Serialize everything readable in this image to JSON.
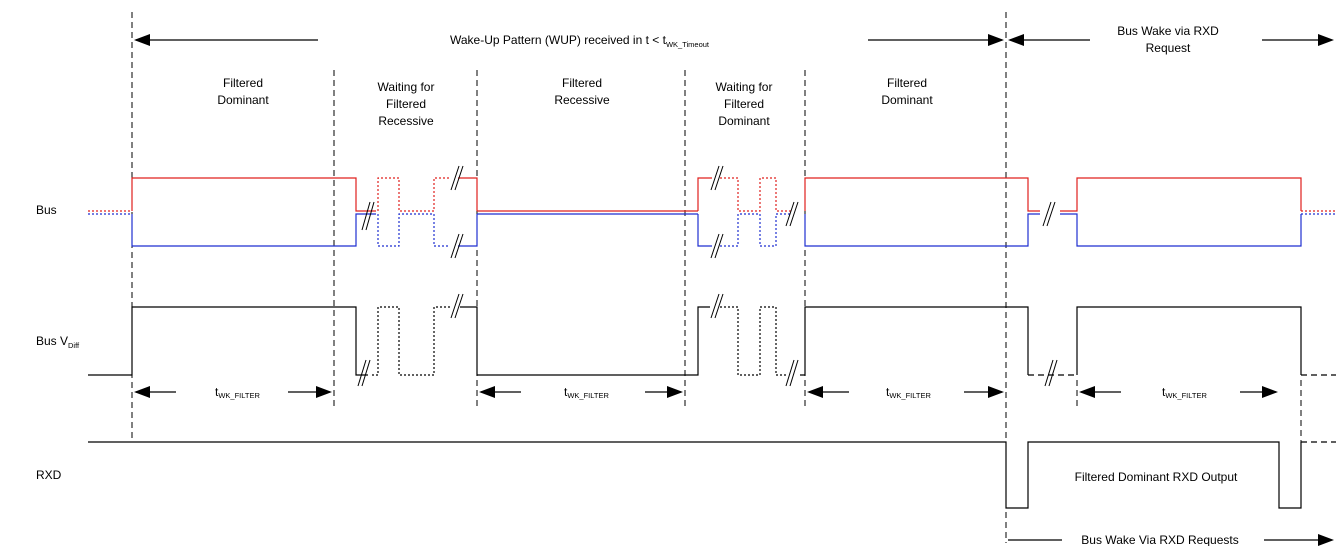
{
  "signals": {
    "bus": "Bus",
    "bus_vdiff": "Bus V",
    "bus_vdiff_sub": "Diff",
    "rxd": "RXD"
  },
  "header": {
    "wup_text": "Wake-Up Pattern (WUP) received in t < t",
    "wup_sub": "WK_Timeout",
    "bus_wake_line1": "Bus Wake via RXD",
    "bus_wake_line2": "Request"
  },
  "phases": [
    {
      "line1": "Filtered",
      "line2": "Dominant",
      "line3": ""
    },
    {
      "line1": "Waiting for",
      "line2": "Filtered",
      "line3": "Recessive"
    },
    {
      "line1": "Filtered",
      "line2": "Recessive",
      "line3": ""
    },
    {
      "line1": "Waiting for",
      "line2": "Filtered",
      "line3": "Dominant"
    },
    {
      "line1": "Filtered",
      "line2": "Dominant",
      "line3": ""
    }
  ],
  "timing": {
    "t": "t",
    "sub": "WK_FILTER"
  },
  "rxd_output_label": "Filtered Dominant RXD Output",
  "bus_wake_requests": "Bus Wake Via RXD Requests",
  "colors": {
    "can_h": "#e0201d",
    "can_l": "#1f2fd0",
    "line": "#000000"
  }
}
